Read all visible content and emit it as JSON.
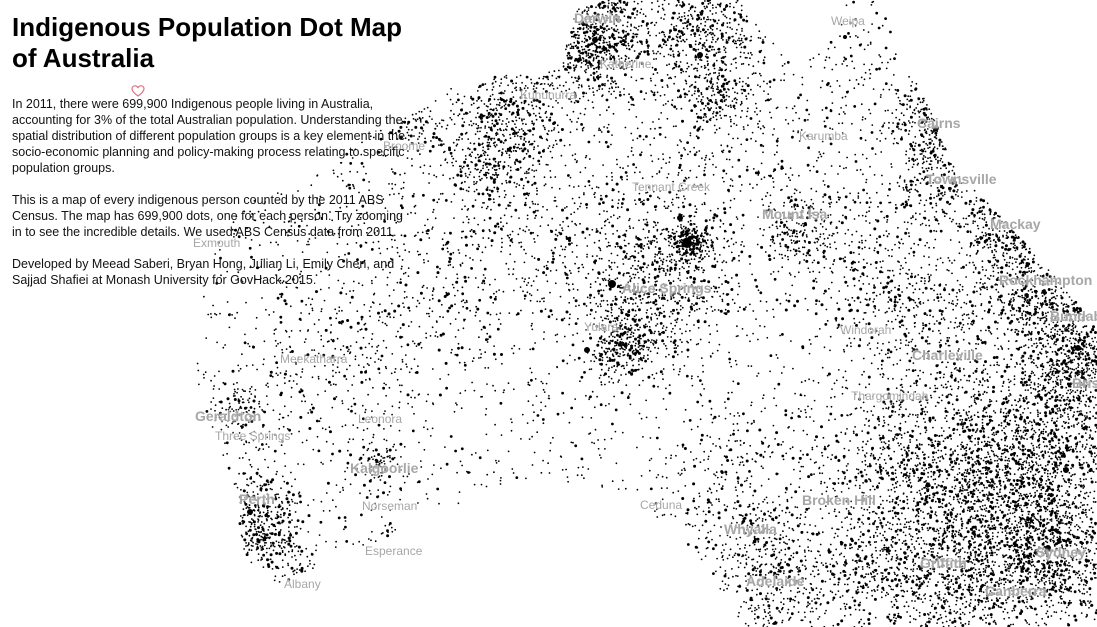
{
  "panel": {
    "title": "Indigenous Population Dot Map of Australia",
    "paragraphs": [
      "In 2011, there were 699,900 Indigenous people living in Australia, accounting for 3% of the total Australian population. Understanding the spatial distribution of different population groups is a key element in the socio-economic planning and policy-making process relating to specific population groups.",
      "This is a map of every indigenous person counted by the 2011 ABS Census. The map has 699,900 dots, one for each person. Try zooming in to see the incredible details. We used ABS Census data from 2011.",
      "Developed by Meead Saberi, Bryan Hong, Julian Li, Emily Chen, and Sajjad Shafiei at Monash University for GovHack 2015."
    ],
    "heart_icon": "heart-icon"
  },
  "map": {
    "dot_color": "#000000",
    "background": "#ffffff",
    "label_color": "#a7a7a7",
    "places": [
      {
        "name": "Darwin",
        "major": true
      },
      {
        "name": "Weipa",
        "major": false
      },
      {
        "name": "Katherine",
        "major": false
      },
      {
        "name": "Kununurra",
        "major": false
      },
      {
        "name": "Cairns",
        "major": true
      },
      {
        "name": "Karumba",
        "major": false
      },
      {
        "name": "Broome",
        "major": false
      },
      {
        "name": "Townsville",
        "major": true
      },
      {
        "name": "Tennant Creek",
        "major": false
      },
      {
        "name": "Mount Isa",
        "major": true
      },
      {
        "name": "Mackay",
        "major": true
      },
      {
        "name": "Exmouth",
        "major": false
      },
      {
        "name": "Alice Springs",
        "major": true
      },
      {
        "name": "Rockhampton",
        "major": true
      },
      {
        "name": "Yulara",
        "major": false
      },
      {
        "name": "Windorah",
        "major": false
      },
      {
        "name": "Bundaberg",
        "major": true
      },
      {
        "name": "Meekatharra",
        "major": false
      },
      {
        "name": "Charleville",
        "major": true
      },
      {
        "name": "Brisbane",
        "major": true
      },
      {
        "name": "Thargomindah",
        "major": false
      },
      {
        "name": "Geraldton",
        "major": true
      },
      {
        "name": "Leonora",
        "major": false
      },
      {
        "name": "Three Springs",
        "major": false
      },
      {
        "name": "Kalgoorlie",
        "major": true
      },
      {
        "name": "Perth",
        "major": true
      },
      {
        "name": "Norseman",
        "major": false
      },
      {
        "name": "Ceduna",
        "major": false
      },
      {
        "name": "Broken Hill",
        "major": true
      },
      {
        "name": "Whyalla",
        "major": true
      },
      {
        "name": "Esperance",
        "major": false
      },
      {
        "name": "Sydney",
        "major": true
      },
      {
        "name": "Griffith",
        "major": true
      },
      {
        "name": "Adelaide",
        "major": true
      },
      {
        "name": "Canberra",
        "major": true
      },
      {
        "name": "Albany",
        "major": false
      }
    ]
  }
}
